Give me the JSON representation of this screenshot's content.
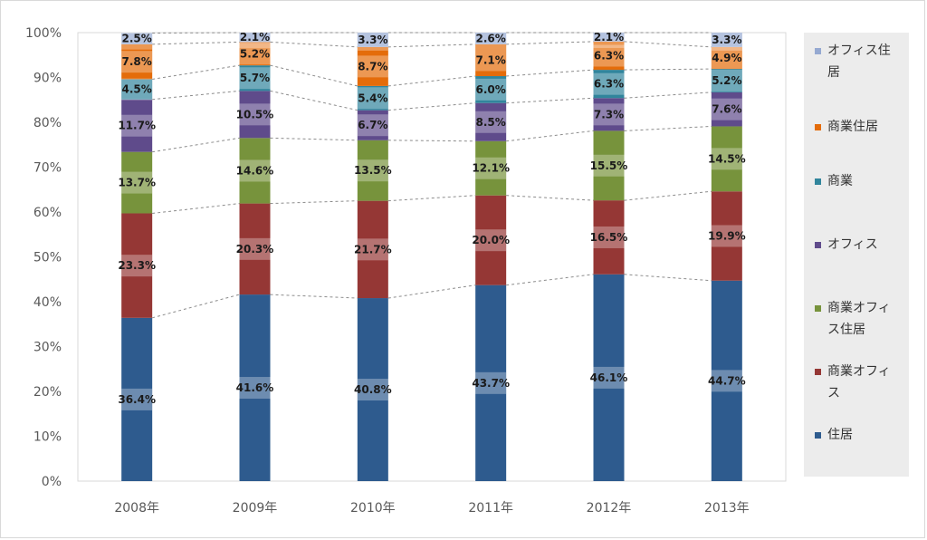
{
  "chart_data": {
    "type": "bar",
    "stacked": true,
    "normalized": true,
    "categories": [
      "2008年",
      "2009年",
      "2010年",
      "2011年",
      "2012年",
      "2013年"
    ],
    "series": [
      {
        "name": "住居",
        "color": "#2e5b8e",
        "values": [
          36.4,
          41.6,
          40.8,
          43.7,
          46.1,
          44.7
        ],
        "labels": [
          "36.4%",
          "41.6%",
          "40.8%",
          "43.7%",
          "46.1%",
          "44.7%"
        ]
      },
      {
        "name": "商業オフィス",
        "color": "#953735",
        "values": [
          23.3,
          20.3,
          21.7,
          20.0,
          16.5,
          19.9
        ],
        "labels": [
          "23.3%",
          "20.3%",
          "21.7%",
          "20.0%",
          "16.5%",
          "19.9%"
        ]
      },
      {
        "name": "商業オフィス住居",
        "color": "#77933c",
        "values": [
          13.7,
          14.6,
          13.5,
          12.1,
          15.5,
          14.5
        ],
        "labels": [
          "13.7%",
          "14.6%",
          "13.5%",
          "12.1%",
          "15.5%",
          "14.5%"
        ]
      },
      {
        "name": "オフィス",
        "color": "#5f4b8b",
        "values": [
          11.7,
          10.5,
          6.7,
          8.5,
          7.3,
          7.6
        ],
        "labels": [
          "11.7%",
          "10.5%",
          "6.7%",
          "8.5%",
          "7.3%",
          "7.6%"
        ]
      },
      {
        "name": "商業",
        "color": "#31859c",
        "values": [
          4.5,
          5.7,
          5.4,
          6.0,
          6.3,
          5.2
        ],
        "labels": [
          "4.5%",
          "5.7%",
          "5.4%",
          "6.0%",
          "6.3%",
          "5.2%"
        ]
      },
      {
        "name": "商業住居",
        "color": "#e46c0a",
        "values": [
          7.8,
          5.2,
          8.7,
          7.1,
          6.3,
          4.9
        ],
        "labels": [
          "7.8%",
          "5.2%",
          "8.7%",
          "7.1%",
          "6.3%",
          "4.9%"
        ]
      },
      {
        "name": "オフィス住居",
        "color": "#95a9d1",
        "values": [
          2.5,
          2.1,
          3.3,
          2.6,
          2.1,
          3.3
        ],
        "labels": [
          "2.5%",
          "2.1%",
          "3.3%",
          "2.6%",
          "2.1%",
          "3.3%"
        ]
      }
    ],
    "yticks": [
      "0%",
      "10%",
      "20%",
      "30%",
      "40%",
      "50%",
      "60%",
      "70%",
      "80%",
      "90%",
      "100%"
    ],
    "ylim": [
      0,
      100
    ],
    "legend_position": "right",
    "series_lines": true
  },
  "legend": {
    "items": [
      {
        "lines": [
          "オフィス住",
          "居"
        ],
        "color": "#95a9d1"
      },
      {
        "lines": [
          "商業住居"
        ],
        "color": "#e46c0a"
      },
      {
        "lines": [
          "商業"
        ],
        "color": "#31859c"
      },
      {
        "lines": [
          "オフィス"
        ],
        "color": "#5f4b8b"
      },
      {
        "lines": [
          "商業オフィ",
          "ス住居"
        ],
        "color": "#77933c"
      },
      {
        "lines": [
          "商業オフィ",
          "ス"
        ],
        "color": "#953735"
      },
      {
        "lines": [
          "住居"
        ],
        "color": "#2e5b8e"
      }
    ]
  }
}
